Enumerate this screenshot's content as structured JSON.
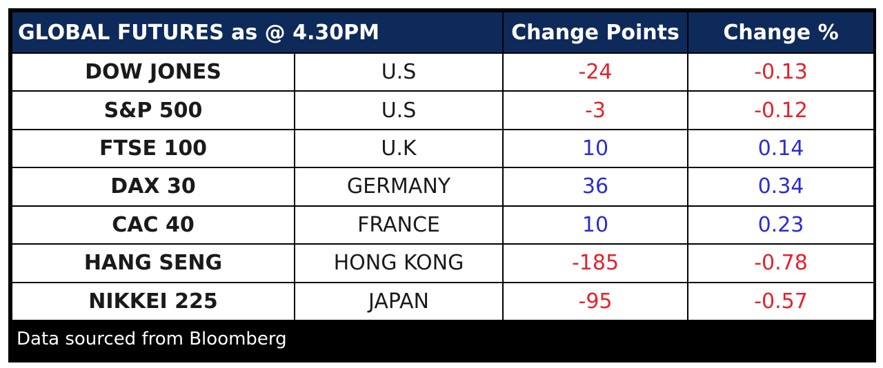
{
  "header": {
    "title": "GLOBAL FUTURES as @  4.30PM",
    "col_points": "Change Points",
    "col_pct": "Change %"
  },
  "rows": [
    {
      "index": "DOW JONES",
      "region": "U.S",
      "points": "-24",
      "pct": "-0.13",
      "direction": "down"
    },
    {
      "index": "S&P 500",
      "region": "U.S",
      "points": "-3",
      "pct": "-0.12",
      "direction": "down"
    },
    {
      "index": "FTSE 100",
      "region": "U.K",
      "points": "10",
      "pct": "0.14",
      "direction": "up"
    },
    {
      "index": "DAX 30",
      "region": "GERMANY",
      "points": "36",
      "pct": "0.34",
      "direction": "up"
    },
    {
      "index": "CAC 40",
      "region": "FRANCE",
      "points": "10",
      "pct": "0.23",
      "direction": "up"
    },
    {
      "index": "HANG SENG",
      "region": "HONG KONG",
      "points": "-185",
      "pct": "-0.78",
      "direction": "down"
    },
    {
      "index": "NIKKEI 225",
      "region": "JAPAN",
      "points": "-95",
      "pct": "-0.57",
      "direction": "down"
    }
  ],
  "footer": {
    "source": "Data sourced from Bloomberg"
  },
  "colors": {
    "header_bg": "#0e2a5a",
    "negative": "#e8202a",
    "positive": "#2b2bd6",
    "footer_bg": "#000000"
  }
}
